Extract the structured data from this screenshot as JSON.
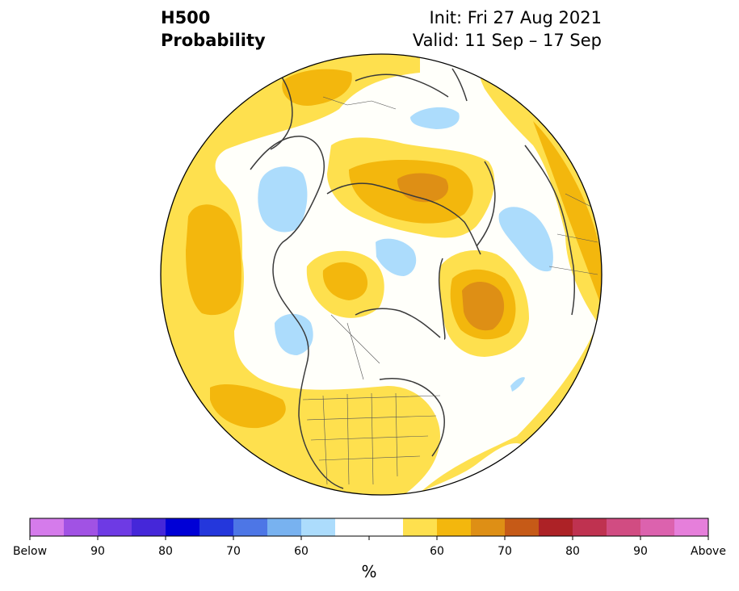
{
  "header": {
    "variable": "H500",
    "product": "Probability",
    "init": "Init: Fri 27 Aug 2021",
    "valid": "Valid: 11 Sep – 17 Sep"
  },
  "colorbar": {
    "unit": "%",
    "colors": [
      "#d57beb",
      "#a152e4",
      "#6e3ae4",
      "#4527d9",
      "#0000d6",
      "#2437dc",
      "#4d76e6",
      "#78b2f0",
      "#acdcfc",
      "#ffffff",
      "#ffffff",
      "#fee04e",
      "#f3b70d",
      "#de8f15",
      "#c65a17",
      "#ad2226",
      "#bf3250",
      "#d14c82",
      "#dc62ae",
      "#e67fdb"
    ],
    "tick_labels": [
      "Below",
      "90",
      "80",
      "70",
      "60",
      "",
      "60",
      "70",
      "80",
      "90",
      "Above"
    ]
  },
  "map_colors": {
    "ocean_land_fill": "#fffffa",
    "above_60": "#fee04e",
    "above_65": "#f3b70d",
    "above_70": "#de8f15",
    "below_60": "#acdcfc",
    "coast": "#3a3a3a"
  }
}
